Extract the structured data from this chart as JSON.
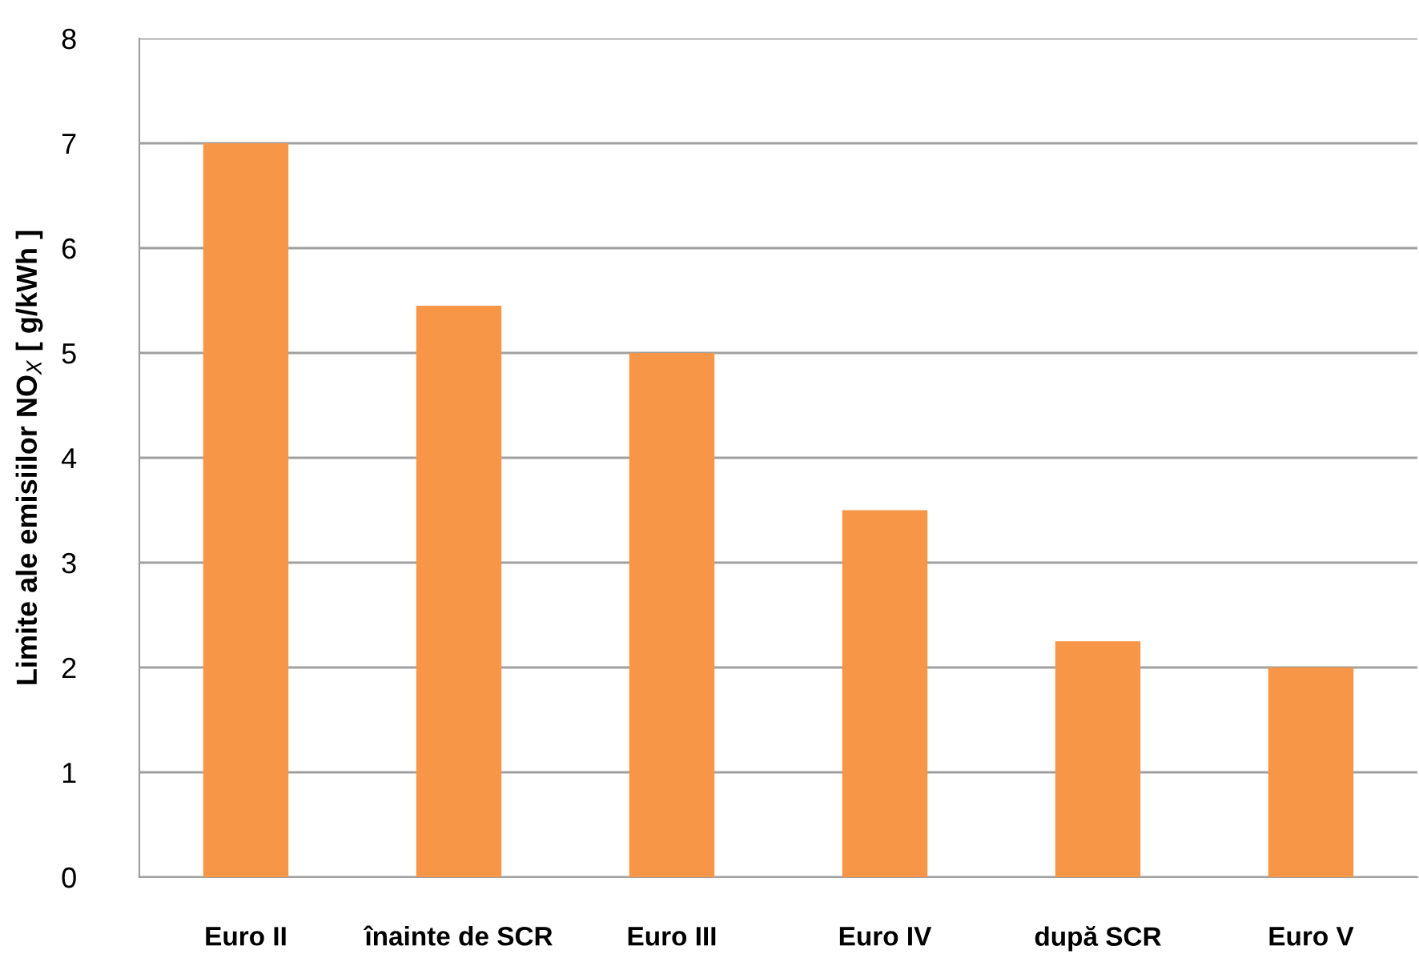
{
  "chart_data": {
    "type": "bar",
    "ylabel": "Limite ale emisiilor NO$_{X}$ [ g/kWh ]",
    "categories": [
      "Euro II",
      "înainte de SCR",
      "Euro III",
      "Euro IV",
      "după SCR",
      "Euro V"
    ],
    "values": [
      7,
      5.45,
      5,
      3.5,
      2.25,
      2
    ],
    "color": "#f79646",
    "ylim": [
      0,
      8
    ],
    "yticks": [
      0,
      1,
      2,
      3,
      4,
      5,
      6,
      7,
      8
    ],
    "grid": "y"
  }
}
